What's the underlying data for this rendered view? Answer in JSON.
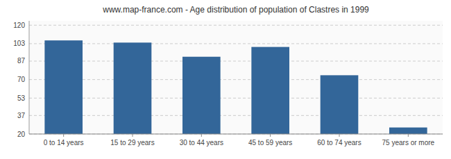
{
  "chart_data": {
    "type": "bar",
    "title": "www.map-france.com - Age distribution of population of Clastres in 1999",
    "categories": [
      "0 to 14 years",
      "15 to 29 years",
      "30 to 44 years",
      "45 to 59 years",
      "60 to 74 years",
      "75 years or more"
    ],
    "values": [
      106,
      104,
      91,
      100,
      74,
      26
    ],
    "color": "#336699",
    "ylim": [
      20,
      124
    ],
    "yticks": [
      20,
      37,
      53,
      70,
      87,
      103,
      120
    ],
    "grid": true
  }
}
